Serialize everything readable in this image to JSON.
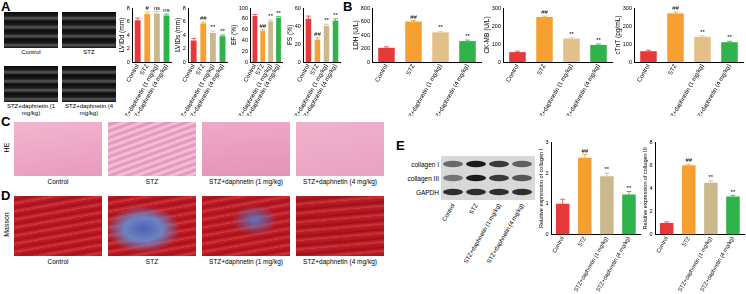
{
  "panel_labels": [
    "A",
    "B",
    "C",
    "D",
    "E"
  ],
  "echo": {
    "captions": [
      "Control",
      "STZ",
      "STZ+daphnetin (1 mg/kg)",
      "STZ+daphnetin (4 mg/kg)"
    ]
  },
  "histology": [
    {
      "stain": "HE",
      "captions": [
        "Control",
        "STZ",
        "STZ+daphnetin (1 mg/kg)",
        "STZ+daphnetin (4 mg/kg)"
      ]
    },
    {
      "stain": "Masson",
      "captions": [
        "Control",
        "STZ",
        "STZ+daphnetin (1 mg/kg)",
        "STZ+daphnetin (4 mg/kg)"
      ]
    }
  ],
  "blot": {
    "rows": [
      "collagen I",
      "collagen III",
      "GAPDH"
    ],
    "lanes": [
      "Control",
      "STZ",
      "STZ+daphnetin (1 mg/kg)",
      "STZ+daphnetin (4 mg/kg)"
    ]
  },
  "chart_data": [
    {
      "type": "bar",
      "y_label": "LVIDd (mm)",
      "categories": [
        "Control",
        "STZ",
        "STZ+daphnetin (1 mg/kg)",
        "STZ+daphnetin (4 mg/kg)"
      ],
      "values": [
        6.2,
        7.1,
        7.2,
        6.9
      ],
      "errors": [
        0.3,
        0.3,
        0.3,
        0.2
      ],
      "annotations": [
        null,
        "#",
        "ns",
        "ns"
      ],
      "colors": [
        "#e8393a",
        "#f5a030",
        "#c9b98c",
        "#2fb34a"
      ],
      "ylim": [
        0,
        8
      ],
      "yticks": [
        0,
        2,
        4,
        6,
        8
      ],
      "grid": false
    },
    {
      "type": "bar",
      "y_label": "LVIDs (mm)",
      "categories": [
        "Control",
        "STZ",
        "STZ+daphnetin (1 mg/kg)",
        "STZ+daphnetin (4 mg/kg)"
      ],
      "values": [
        3.2,
        5.7,
        4.3,
        3.8
      ],
      "errors": [
        0.3,
        0.2,
        0.3,
        0.2
      ],
      "annotations": [
        null,
        "##",
        "**",
        "**"
      ],
      "colors": [
        "#e8393a",
        "#f5a030",
        "#c9b98c",
        "#2fb34a"
      ],
      "ylim": [
        0,
        8
      ],
      "yticks": [
        0,
        2,
        4,
        6,
        8
      ],
      "grid": false
    },
    {
      "type": "bar",
      "y_label": "EF (%)",
      "categories": [
        "Control",
        "STZ",
        "STZ+daphnetin (1 mg/kg)",
        "STZ+daphnetin (4 mg/kg)"
      ],
      "values": [
        85,
        58,
        75,
        82
      ],
      "errors": [
        3,
        2,
        3,
        2
      ],
      "annotations": [
        null,
        "##",
        "**",
        "**"
      ],
      "colors": [
        "#e8393a",
        "#f5a030",
        "#c9b98c",
        "#2fb34a"
      ],
      "ylim": [
        0,
        100
      ],
      "yticks": [
        0,
        20,
        40,
        60,
        80,
        100
      ],
      "grid": false
    },
    {
      "type": "bar",
      "y_label": "FS (%)",
      "categories": [
        "Control",
        "STZ",
        "STZ+daphnetin (1 mg/kg)",
        "STZ+daphnetin (4 mg/kg)"
      ],
      "values": [
        48,
        25,
        40,
        46
      ],
      "errors": [
        3,
        2,
        2,
        2
      ],
      "annotations": [
        null,
        "##",
        "**",
        "**"
      ],
      "colors": [
        "#e8393a",
        "#f5a030",
        "#c9b98c",
        "#2fb34a"
      ],
      "ylim": [
        0,
        60
      ],
      "yticks": [
        0,
        20,
        40,
        60
      ],
      "grid": false
    },
    {
      "type": "bar",
      "y_label": "LDH (U/L)",
      "categories": [
        "Control",
        "STZ",
        "STZ+daphnetin (1 mg/kg)",
        "STZ+daphnetin (4 mg/kg)"
      ],
      "values": [
        210,
        600,
        440,
        310
      ],
      "errors": [
        15,
        15,
        15,
        15
      ],
      "annotations": [
        null,
        "##",
        "**",
        "**"
      ],
      "colors": [
        "#e8393a",
        "#f5a030",
        "#e3c089",
        "#2fb34a"
      ],
      "ylim": [
        0,
        800
      ],
      "yticks": [
        0,
        200,
        400,
        600,
        800
      ],
      "grid": false
    },
    {
      "type": "bar",
      "y_label": "CK-MB (U/L)",
      "categories": [
        "Control",
        "STZ",
        "STZ+daphnetin (1 mg/kg)",
        "STZ+daphnetin (4 mg/kg)"
      ],
      "values": [
        55,
        250,
        130,
        95
      ],
      "errors": [
        5,
        5,
        5,
        5
      ],
      "annotations": [
        null,
        "##",
        "**",
        "**"
      ],
      "colors": [
        "#e8393a",
        "#f5a030",
        "#e3c089",
        "#2fb34a"
      ],
      "ylim": [
        0,
        300
      ],
      "yticks": [
        0,
        100,
        200,
        300
      ],
      "grid": false
    },
    {
      "type": "bar",
      "y_label": "cTnT (pg/mL)",
      "categories": [
        "Control",
        "STZ",
        "STZ+daphnetin (1 mg/kg)",
        "STZ+daphnetin (4 mg/kg)"
      ],
      "values": [
        60,
        270,
        140,
        110
      ],
      "errors": [
        5,
        8,
        6,
        5
      ],
      "annotations": [
        null,
        "##",
        "**",
        "**"
      ],
      "colors": [
        "#e8393a",
        "#f5a030",
        "#e3c089",
        "#2fb34a"
      ],
      "ylim": [
        0,
        300
      ],
      "yticks": [
        0,
        100,
        200,
        300
      ],
      "grid": false
    },
    {
      "type": "bar",
      "y_label": "Relative expression of collagen I",
      "categories": [
        "Control",
        "STZ",
        "STZ+daphnetin (1 mg/kg)",
        "STZ+daphnetin (4 mg/kg)"
      ],
      "values": [
        1.0,
        2.5,
        1.9,
        1.3
      ],
      "errors": [
        0.15,
        0.1,
        0.1,
        0.1
      ],
      "annotations": [
        null,
        "##",
        "**",
        "**"
      ],
      "colors": [
        "#e8393a",
        "#f5a030",
        "#c9b98c",
        "#2fb34a"
      ],
      "ylim": [
        0,
        3
      ],
      "yticks": [
        0,
        1,
        2,
        3
      ],
      "grid": false
    },
    {
      "type": "bar",
      "y_label": "Relative expression of collagen III",
      "categories": [
        "Control",
        "STZ",
        "STZ+daphnetin (1 mg/kg)",
        "STZ+daphnetin (4 mg/kg)"
      ],
      "values": [
        1.0,
        6.0,
        4.5,
        3.3
      ],
      "errors": [
        0.1,
        0.1,
        0.15,
        0.1
      ],
      "annotations": [
        null,
        "##",
        "**",
        "**"
      ],
      "colors": [
        "#e8393a",
        "#f5a030",
        "#c9b98c",
        "#2fb34a"
      ],
      "ylim": [
        0,
        8
      ],
      "yticks": [
        0,
        2,
        4,
        6,
        8
      ],
      "grid": false
    }
  ]
}
